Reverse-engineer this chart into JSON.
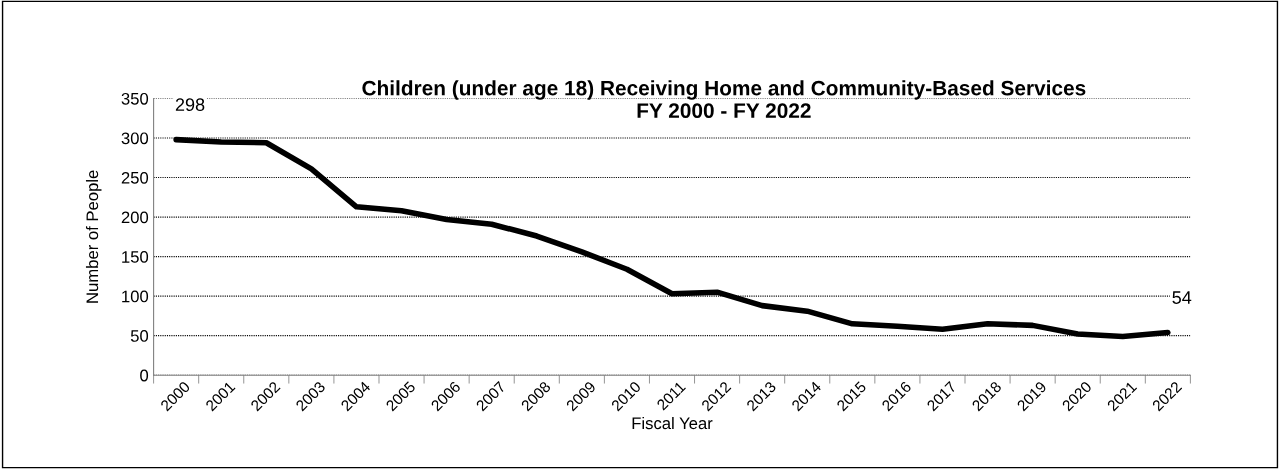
{
  "chart_data": {
    "type": "line",
    "title": "Children (under age 18) Receiving Home and Community-Based Services\nFY 2000 - FY 2022",
    "xlabel": "Fiscal Year",
    "ylabel": "Number of People",
    "categories": [
      "2000",
      "2001",
      "2002",
      "2003",
      "2004",
      "2005",
      "2006",
      "2007",
      "2008",
      "2009",
      "2010",
      "2011",
      "2012",
      "2013",
      "2014",
      "2015",
      "2016",
      "2017",
      "2018",
      "2019",
      "2020",
      "2021",
      "2022"
    ],
    "series": [
      {
        "color": "#000000",
        "values": [
          298,
          295,
          294,
          261,
          213,
          208,
          197,
          191,
          176,
          156,
          134,
          103,
          105,
          88,
          81,
          65,
          62,
          58,
          65,
          63,
          52,
          49,
          54
        ]
      }
    ],
    "ylim": [
      0,
      350
    ],
    "yticks": [
      0,
      50,
      100,
      150,
      200,
      250,
      300,
      350
    ],
    "grid": "y",
    "legend": false,
    "marker": "none",
    "line_style": "solid",
    "annotations": [
      {
        "text": "298",
        "x": "2000",
        "y": 298
      },
      {
        "text": "54",
        "x": "2022",
        "y": 54
      }
    ]
  }
}
